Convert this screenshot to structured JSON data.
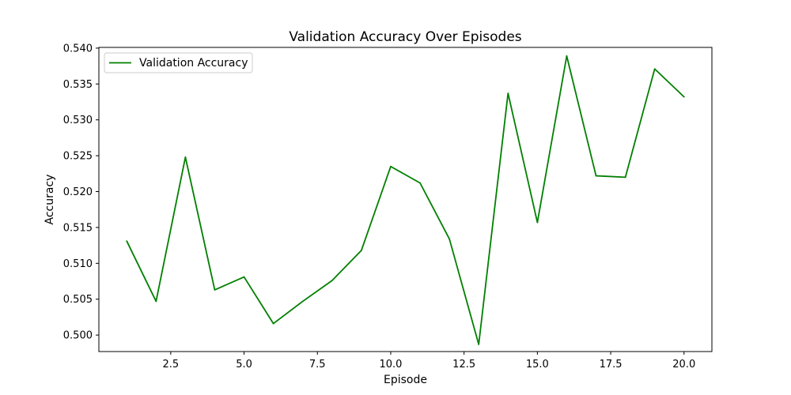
{
  "chart_data": {
    "type": "line",
    "title": "Validation Accuracy Over Episodes",
    "xlabel": "Episode",
    "ylabel": "Accuracy",
    "xlim": [
      0.05,
      20.95
    ],
    "ylim": [
      0.4977,
      0.5401
    ],
    "x_ticks": [
      2.5,
      5.0,
      7.5,
      10.0,
      12.5,
      15.0,
      17.5,
      20.0
    ],
    "x_tick_labels": [
      "2.5",
      "5.0",
      "7.5",
      "10.0",
      "12.5",
      "15.0",
      "17.5",
      "20.0"
    ],
    "y_ticks": [
      0.5,
      0.505,
      0.51,
      0.515,
      0.52,
      0.525,
      0.53,
      0.535,
      0.54
    ],
    "y_tick_labels": [
      "0.500",
      "0.505",
      "0.510",
      "0.515",
      "0.520",
      "0.525",
      "0.530",
      "0.535",
      "0.540"
    ],
    "grid": false,
    "legend_position": "top-left",
    "series": [
      {
        "name": "Validation Accuracy",
        "color": "#008000",
        "x": [
          1,
          2,
          3,
          4,
          5,
          6,
          7,
          8,
          9,
          10,
          11,
          12,
          13,
          14,
          15,
          16,
          17,
          18,
          19,
          20
        ],
        "values": [
          0.5131,
          0.5047,
          0.5248,
          0.5063,
          0.5081,
          0.5016,
          0.5047,
          0.5076,
          0.5118,
          0.5235,
          0.5212,
          0.5134,
          0.4987,
          0.5337,
          0.5157,
          0.5389,
          0.5222,
          0.522,
          0.5371,
          0.5332
        ]
      }
    ]
  }
}
